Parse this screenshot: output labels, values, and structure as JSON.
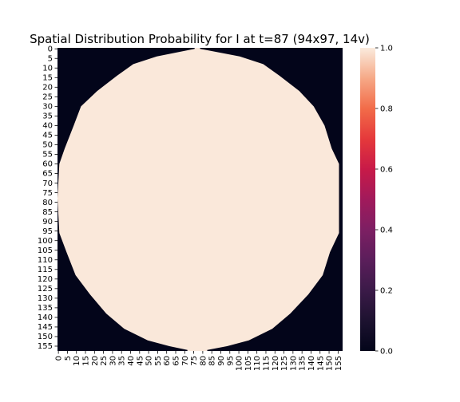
{
  "chart_data": {
    "type": "heatmap",
    "title": "Spatial Distribution Probability for I at t=87 (94x97, 14v)",
    "xlabel": "",
    "ylabel": "",
    "rows": 158,
    "cols": 158,
    "x_tick_labels": [
      "0",
      "5",
      "10",
      "15",
      "20",
      "25",
      "30",
      "35",
      "40",
      "45",
      "50",
      "55",
      "60",
      "65",
      "70",
      "75",
      "80",
      "85",
      "90",
      "95",
      "100",
      "105",
      "110",
      "115",
      "120",
      "125",
      "130",
      "135",
      "140",
      "145",
      "150",
      "155"
    ],
    "y_tick_labels": [
      "0",
      "5",
      "10",
      "15",
      "20",
      "25",
      "30",
      "35",
      "40",
      "45",
      "50",
      "55",
      "60",
      "65",
      "70",
      "75",
      "80",
      "85",
      "90",
      "95",
      "100",
      "105",
      "110",
      "115",
      "120",
      "125",
      "130",
      "135",
      "140",
      "145",
      "150",
      "155"
    ],
    "value_range": [
      0.0,
      1.0
    ],
    "colormap": "rocket",
    "colorbar": {
      "ticks": [
        0.0,
        0.2,
        0.4,
        0.6,
        0.8,
        1.0
      ],
      "tick_labels": [
        "0.0",
        "0.2",
        "0.4",
        "0.6",
        "0.8",
        "1.0"
      ]
    },
    "region": {
      "shape": "polygon",
      "description_values": "cells inside the near-circular region have probability ~0.97-1.0; cells outside are 0.0",
      "inside_value": 0.98,
      "outside_value": 0.0,
      "row_extents": [
        {
          "row": 0,
          "col_start": 76,
          "col_end": 78
        },
        {
          "row": 4,
          "col_start": 55,
          "col_end": 100
        },
        {
          "row": 8,
          "col_start": 42,
          "col_end": 113
        },
        {
          "row": 14,
          "col_start": 33,
          "col_end": 122
        },
        {
          "row": 22,
          "col_start": 22,
          "col_end": 133
        },
        {
          "row": 30,
          "col_start": 13,
          "col_end": 141
        },
        {
          "row": 40,
          "col_start": 9,
          "col_end": 147
        },
        {
          "row": 52,
          "col_start": 4,
          "col_end": 151
        },
        {
          "row": 60,
          "col_start": 1,
          "col_end": 155
        },
        {
          "row": 78,
          "col_start": 0,
          "col_end": 155
        },
        {
          "row": 96,
          "col_start": 1,
          "col_end": 155
        },
        {
          "row": 106,
          "col_start": 5,
          "col_end": 150
        },
        {
          "row": 118,
          "col_start": 10,
          "col_end": 146
        },
        {
          "row": 128,
          "col_start": 18,
          "col_end": 138
        },
        {
          "row": 138,
          "col_start": 27,
          "col_end": 128
        },
        {
          "row": 146,
          "col_start": 37,
          "col_end": 118
        },
        {
          "row": 152,
          "col_start": 50,
          "col_end": 105
        },
        {
          "row": 155,
          "col_start": 62,
          "col_end": 93
        },
        {
          "row": 157,
          "col_start": 72,
          "col_end": 82
        }
      ]
    },
    "colors": {
      "low": "#03051a",
      "high": "#faebdd",
      "inside_fill": "#fae8da"
    }
  }
}
